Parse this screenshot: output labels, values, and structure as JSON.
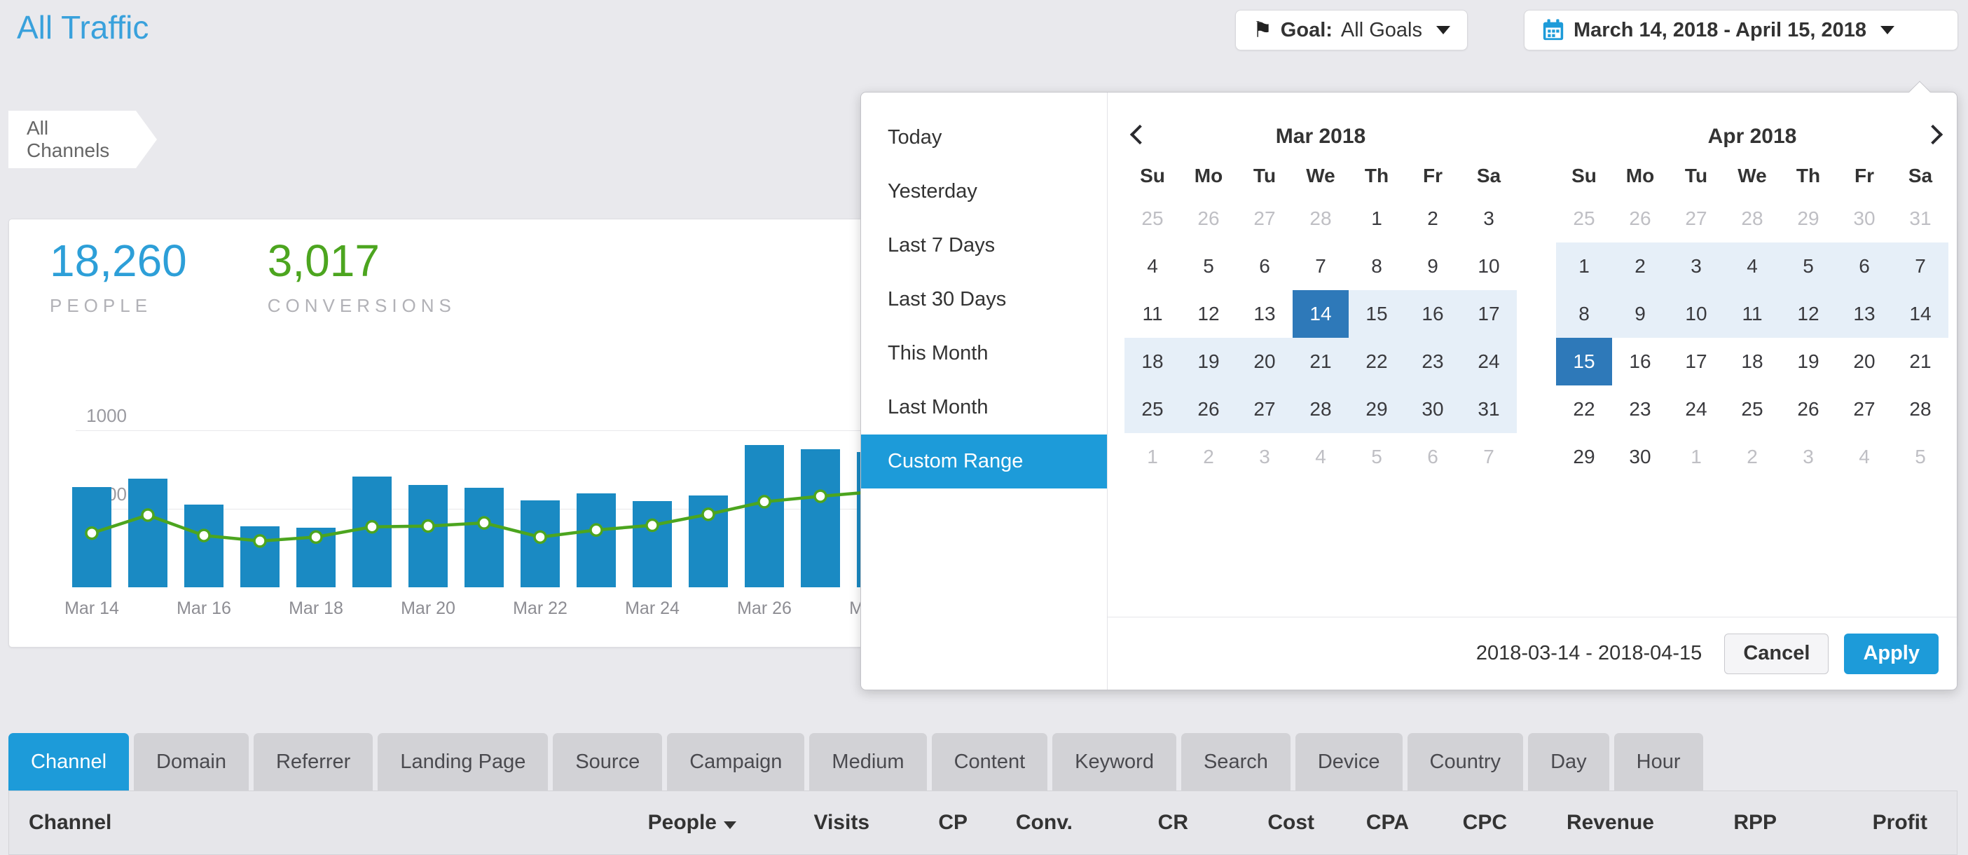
{
  "page": {
    "title": "All Traffic"
  },
  "toolbar": {
    "goal": {
      "prefix": "Goal:",
      "value": "All Goals"
    },
    "date_range": {
      "value": "March 14, 2018 - April 15, 2018"
    }
  },
  "breadcrumb": {
    "label": "All Channels"
  },
  "summary": {
    "people": {
      "value": "18,260",
      "label": "PEOPLE"
    },
    "conversions": {
      "value": "3,017",
      "label": "CONVERSIONS"
    }
  },
  "chart_data": {
    "type": "bar",
    "title": "",
    "categories": [
      "Mar 14",
      "Mar 15",
      "Mar 16",
      "Mar 17",
      "Mar 18",
      "Mar 19",
      "Mar 20",
      "Mar 21",
      "Mar 22",
      "Mar 23",
      "Mar 24",
      "Mar 25",
      "Mar 26",
      "Mar 27",
      "Mar 28"
    ],
    "series": [
      {
        "name": "People",
        "kind": "bar",
        "color": "#1a8ac3",
        "values": [
          640,
          690,
          525,
          390,
          380,
          705,
          650,
          635,
          555,
          600,
          550,
          585,
          905,
          880,
          860
        ]
      },
      {
        "name": "Conversions",
        "kind": "line",
        "color": "#4ca51f",
        "values": [
          345,
          460,
          330,
          295,
          320,
          385,
          390,
          410,
          320,
          365,
          395,
          465,
          545,
          580,
          610
        ]
      }
    ],
    "ylim": [
      0,
      1150
    ],
    "y_ticks": [
      1000,
      500
    ],
    "x_tick_every": 2,
    "grid": true,
    "legend": "none"
  },
  "datepicker": {
    "presets": [
      "Today",
      "Yesterday",
      "Last 7 Days",
      "Last 30 Days",
      "This Month",
      "Last Month",
      "Custom Range"
    ],
    "active_preset": "Custom Range",
    "weekdays": [
      "Su",
      "Mo",
      "Tu",
      "We",
      "Th",
      "Fr",
      "Sa"
    ],
    "months": [
      {
        "title": "Mar 2018",
        "days": [
          "25m",
          "26m",
          "27m",
          "28m",
          "1",
          "2",
          "3",
          "4",
          "5",
          "6",
          "7",
          "8",
          "9",
          "10",
          "11",
          "12",
          "13",
          "14s",
          "15r",
          "16r",
          "17r",
          "18r",
          "19r",
          "20r",
          "21r",
          "22r",
          "23r",
          "24r",
          "25r",
          "26r",
          "27r",
          "28r",
          "29r",
          "30r",
          "31r",
          "1m",
          "2m",
          "3m",
          "4m",
          "5m",
          "6m",
          "7m"
        ]
      },
      {
        "title": "Apr 2018",
        "days": [
          "25m",
          "26m",
          "27m",
          "28m",
          "29m",
          "30m",
          "31m",
          "1r",
          "2r",
          "3r",
          "4r",
          "5r",
          "6r",
          "7r",
          "8r",
          "9r",
          "10r",
          "11r",
          "12r",
          "13r",
          "14r",
          "15s",
          "16",
          "17",
          "18",
          "19",
          "20",
          "21",
          "22",
          "23",
          "24",
          "25",
          "26",
          "27",
          "28",
          "29",
          "30",
          "1m",
          "2m",
          "3m",
          "4m",
          "5m"
        ]
      }
    ],
    "selected_range_text": "2018-03-14 - 2018-04-15",
    "cancel_label": "Cancel",
    "apply_label": "Apply"
  },
  "tabs": {
    "active": "Channel",
    "items": [
      "Channel",
      "Domain",
      "Referrer",
      "Landing Page",
      "Source",
      "Campaign",
      "Medium",
      "Content",
      "Keyword",
      "Search",
      "Device",
      "Country",
      "Day",
      "Hour"
    ]
  },
  "table": {
    "columns": [
      "Channel",
      "People",
      "Visits",
      "CP",
      "Conv.",
      "CR",
      "Cost",
      "CPA",
      "CPC",
      "Revenue",
      "RPP",
      "Profit"
    ],
    "sort_column": "People",
    "sort_direction": "desc"
  },
  "colors": {
    "accent_blue": "#1d9bd9",
    "selected_day_blue": "#2e79b9",
    "range_highlight": "#e6eff8",
    "title_blue": "#39a1dc",
    "people_blue": "#2d9fd8",
    "conversions_green": "#4ca51f",
    "bar_blue": "#1a8ac3",
    "line_green": "#4ca51f"
  }
}
